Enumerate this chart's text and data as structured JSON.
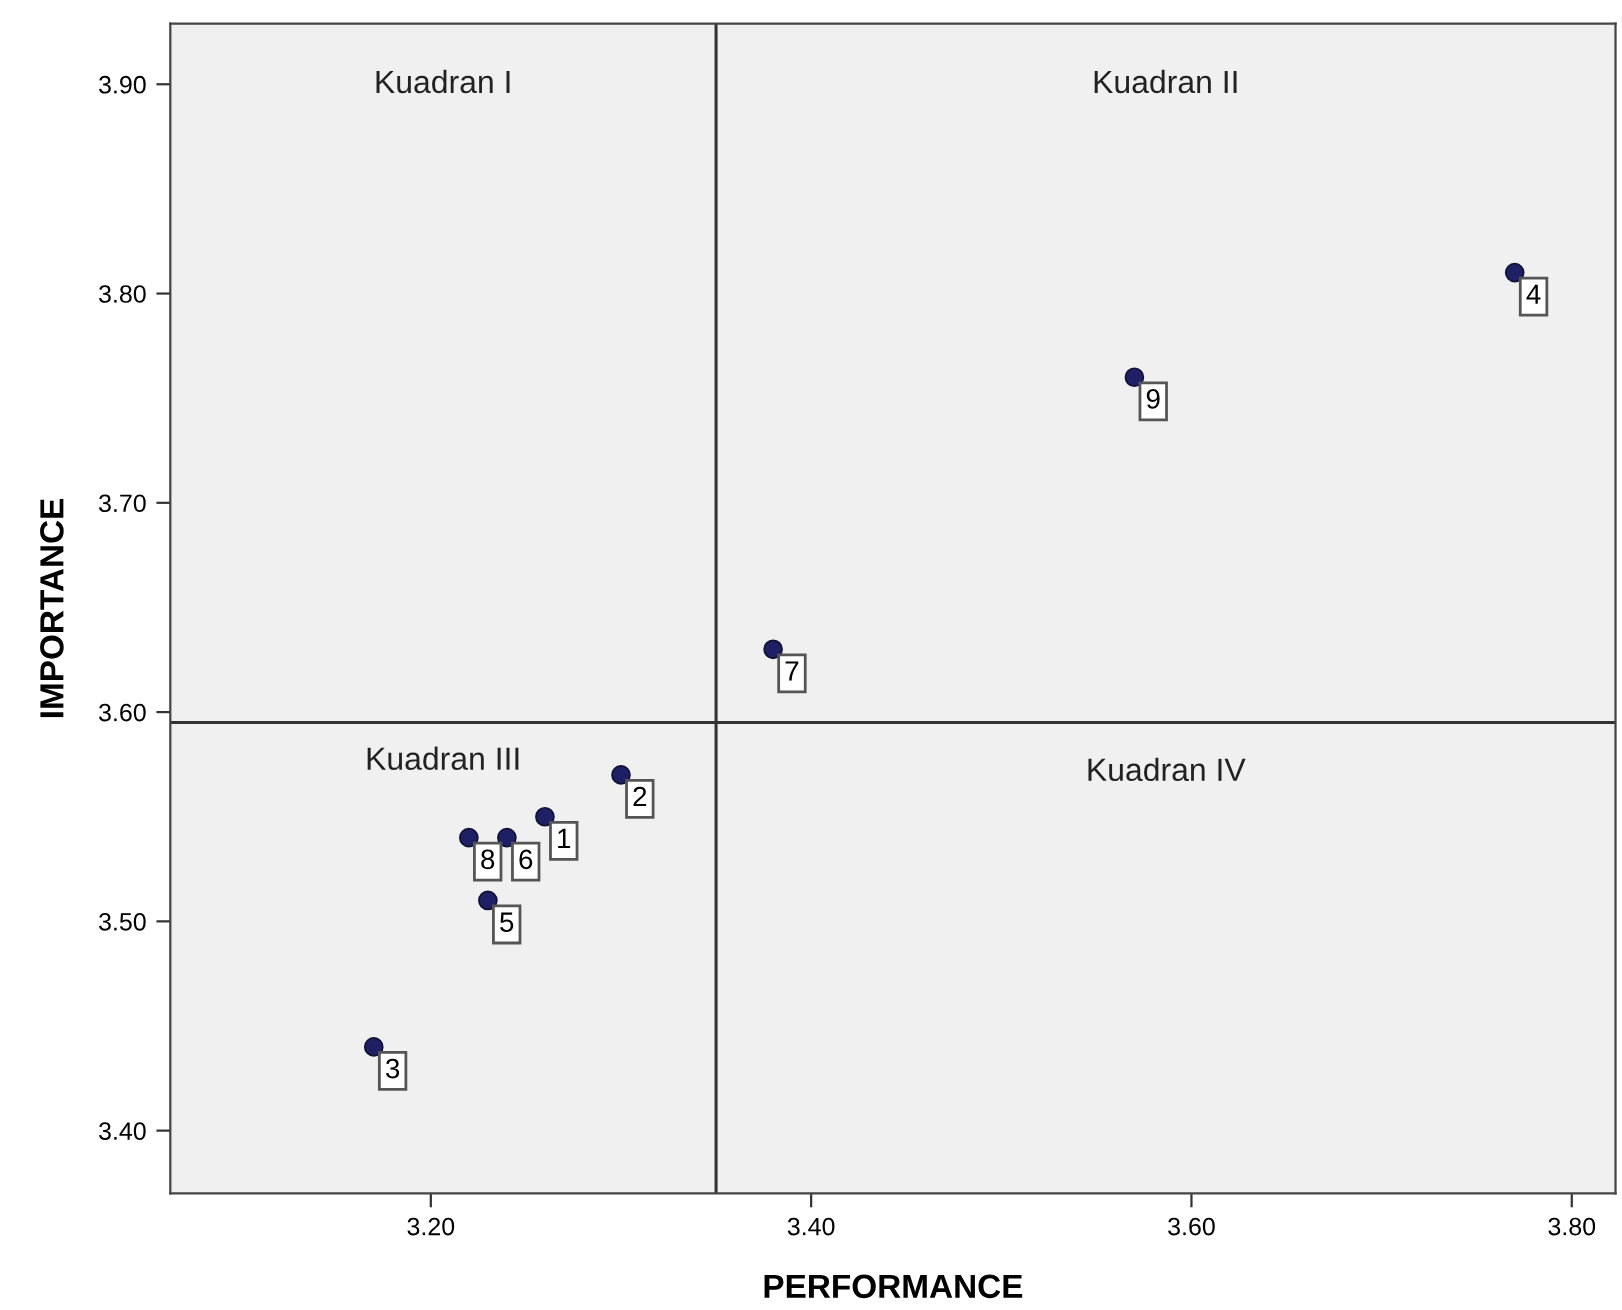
{
  "chart_data": {
    "type": "scatter",
    "xlabel": "PERFORMANCE",
    "ylabel": "IMPORTANCE",
    "x": [
      3.26,
      3.3,
      3.17,
      3.77,
      3.23,
      3.24,
      3.38,
      3.22,
      3.57
    ],
    "series": [
      {
        "color": "#1f1f66",
        "values": [
          3.55,
          3.57,
          3.44,
          3.81,
          3.51,
          3.54,
          3.63,
          3.54,
          3.76
        ]
      }
    ],
    "xlim": [
      3.063,
      3.823
    ],
    "ylim": [
      3.37,
      3.929
    ],
    "xticks": [
      {
        "value": 3.2,
        "label": "3.20"
      },
      {
        "value": 3.4,
        "label": "3.40"
      },
      {
        "value": 3.6,
        "label": "3.60"
      },
      {
        "value": 3.8,
        "label": "3.80"
      }
    ],
    "yticks": [
      {
        "value": 3.4,
        "label": "3.40"
      },
      {
        "value": 3.5,
        "label": "3.50"
      },
      {
        "value": 3.6,
        "label": "3.60"
      },
      {
        "value": 3.7,
        "label": "3.70"
      },
      {
        "value": 3.8,
        "label": "3.80"
      },
      {
        "value": 3.9,
        "label": "3.90"
      }
    ],
    "ref_lines": [
      {
        "axis": "x",
        "value": 3.35,
        "color": "#333333"
      },
      {
        "axis": "y",
        "value": 3.595,
        "color": "#333333"
      }
    ],
    "annotations": [
      "Kuadran I",
      "Kuadran II",
      "Kuadran III",
      "Kuadran IV",
      {
        "text": "1",
        "x": 3.26,
        "y": 3.55
      },
      {
        "text": "2",
        "x": 3.3,
        "y": 3.57
      },
      {
        "text": "3",
        "x": 3.17,
        "y": 3.44
      },
      {
        "text": "4",
        "x": 3.77,
        "y": 3.81
      },
      {
        "text": "5",
        "x": 3.23,
        "y": 3.51
      },
      {
        "text": "6",
        "x": 3.24,
        "y": 3.54
      },
      {
        "text": "7",
        "x": 3.38,
        "y": 3.63
      },
      {
        "text": "8",
        "x": 3.22,
        "y": 3.54
      },
      {
        "text": "9",
        "x": 3.57,
        "y": 3.76
      }
    ],
    "grid": false,
    "legend": false,
    "marker": "circle"
  }
}
